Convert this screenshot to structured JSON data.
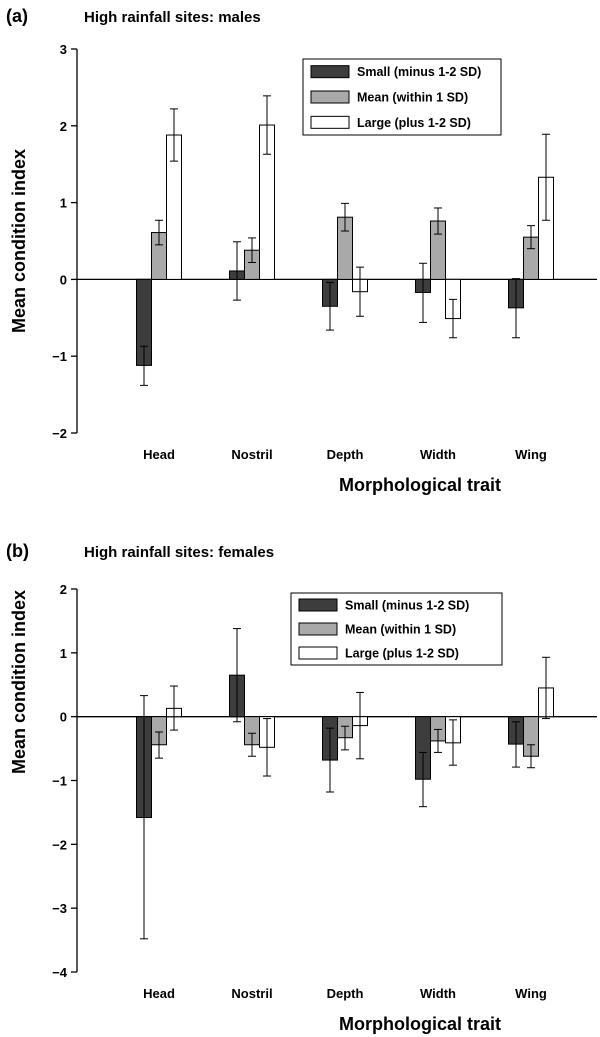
{
  "chart_data": [
    {
      "type": "bar",
      "panel_label": "(a)",
      "title": "High rainfall sites: males",
      "xlabel": "Morphological trait",
      "ylabel": "Mean condition index",
      "categories": [
        "Head",
        "Nostril",
        "Depth",
        "Width",
        "Wing"
      ],
      "ylim": [
        -2,
        3
      ],
      "yticks": [
        "3",
        "2",
        "1",
        "0",
        "−1",
        "−2"
      ],
      "ytick_values": [
        3,
        2,
        1,
        0,
        -1,
        -2
      ],
      "legend_position": "top-right",
      "series": [
        {
          "name": "Small (minus 1-2 SD)",
          "color": "#3d3d3d",
          "values": [
            -1.12,
            0.11,
            -0.35,
            -0.17,
            -0.37
          ],
          "err_low": [
            -1.38,
            -0.27,
            -0.66,
            -0.56,
            -0.76
          ],
          "err_high": [
            -0.87,
            0.49,
            -0.04,
            0.21,
            0.01
          ]
        },
        {
          "name": "Mean (within 1 SD)",
          "color": "#a9a9a9",
          "values": [
            0.61,
            0.38,
            0.81,
            0.76,
            0.55
          ],
          "err_low": [
            0.45,
            0.22,
            0.63,
            0.59,
            0.4
          ],
          "err_high": [
            0.77,
            0.54,
            0.99,
            0.93,
            0.7
          ]
        },
        {
          "name": "Large (plus 1-2 SD)",
          "color": "#ffffff",
          "values": [
            1.88,
            2.01,
            -0.16,
            -0.51,
            1.33
          ],
          "err_low": [
            1.54,
            1.63,
            -0.48,
            -0.76,
            0.77
          ],
          "err_high": [
            2.22,
            2.39,
            0.16,
            -0.26,
            1.89
          ]
        }
      ]
    },
    {
      "type": "bar",
      "panel_label": "(b)",
      "title": "High rainfall sites: females",
      "xlabel": "Morphological trait",
      "ylabel": "Mean condition index",
      "categories": [
        "Head",
        "Nostril",
        "Depth",
        "Width",
        "Wing"
      ],
      "ylim": [
        -4,
        2
      ],
      "yticks": [
        "2",
        "1",
        "0",
        "−1",
        "−2",
        "−3",
        "−4"
      ],
      "ytick_values": [
        2,
        1,
        0,
        -1,
        -2,
        -3,
        -4
      ],
      "legend_position": "top-right",
      "series": [
        {
          "name": "Small (minus 1-2 SD)",
          "color": "#3d3d3d",
          "values": [
            -1.58,
            0.65,
            -0.68,
            -0.98,
            -0.43
          ],
          "err_low": [
            -3.48,
            -0.08,
            -1.18,
            -1.41,
            -0.79
          ],
          "err_high": [
            0.33,
            1.38,
            -0.18,
            -0.56,
            -0.08
          ]
        },
        {
          "name": "Mean (within 1 SD)",
          "color": "#a9a9a9",
          "values": [
            -0.44,
            -0.44,
            -0.33,
            -0.38,
            -0.62
          ],
          "err_low": [
            -0.65,
            -0.62,
            -0.52,
            -0.56,
            -0.8
          ],
          "err_high": [
            -0.24,
            -0.26,
            -0.15,
            -0.2,
            -0.44
          ]
        },
        {
          "name": "Large (plus 1-2 SD)",
          "color": "#ffffff",
          "values": [
            0.13,
            -0.48,
            -0.14,
            -0.41,
            0.45
          ],
          "err_low": [
            -0.21,
            -0.93,
            -0.66,
            -0.76,
            -0.03
          ],
          "err_high": [
            0.48,
            -0.03,
            0.38,
            -0.05,
            0.93
          ]
        }
      ]
    }
  ]
}
